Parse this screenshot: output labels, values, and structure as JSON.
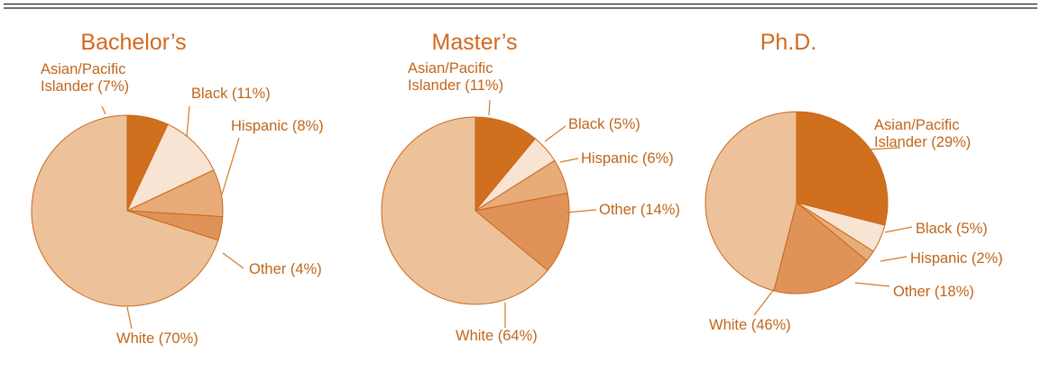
{
  "chart_data": [
    {
      "type": "pie",
      "title": "Bachelor’s",
      "categories": [
        "Asian/Pacific Islander",
        "Black",
        "Hispanic",
        "Other",
        "White"
      ],
      "values": [
        7,
        11,
        8,
        4,
        70
      ],
      "labels": [
        [
          "Asian/Pacific",
          "Islander (7%)"
        ],
        [
          "Black (11%)"
        ],
        [
          "Hispanic (8%)"
        ],
        [
          "Other (4%)"
        ],
        [
          "White (70%)"
        ]
      ]
    },
    {
      "type": "pie",
      "title": "Master’s",
      "categories": [
        "Asian/Pacific Islander",
        "Black",
        "Hispanic",
        "Other",
        "White"
      ],
      "values": [
        11,
        5,
        6,
        14,
        64
      ],
      "labels": [
        [
          "Asian/Pacific",
          "Islander (11%)"
        ],
        [
          "Black (5%)"
        ],
        [
          "Hispanic (6%)"
        ],
        [
          "Other (14%)"
        ],
        [
          "White (64%)"
        ]
      ]
    },
    {
      "type": "pie",
      "title": "Ph.D.",
      "categories": [
        "Asian/Pacific Islander",
        "Black",
        "Hispanic",
        "Other",
        "White"
      ],
      "values": [
        29,
        5,
        2,
        18,
        46
      ],
      "labels": [
        [
          "Asian/Pacific",
          "Islander (29%)"
        ],
        [
          "Black (5%)"
        ],
        [
          "Hispanic (2%)"
        ],
        [
          "Other (18%)"
        ],
        [
          "White (46%)"
        ]
      ]
    }
  ],
  "colors": {
    "asian_pacific_islander": "#d0701e",
    "black": "#f8e4d2",
    "hispanic": "#e7ac78",
    "other": "#e09358",
    "white": "#edc29a",
    "text": "#c0661a",
    "title": "#d2691e"
  }
}
